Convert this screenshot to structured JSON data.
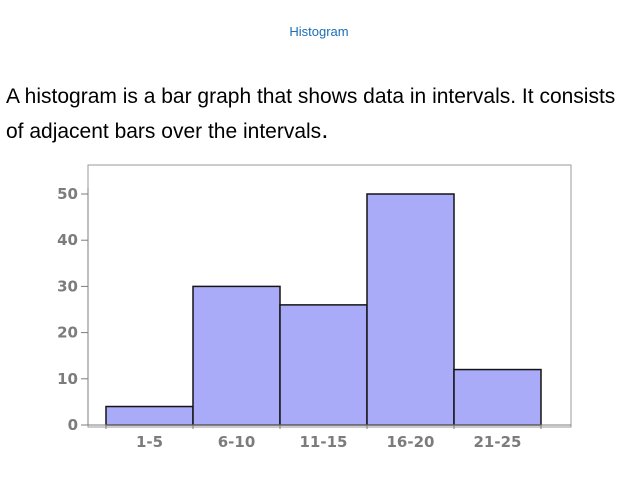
{
  "title": "Histogram",
  "body_text": "A histogram is a bar graph that shows data in intervals. It consists of adjacent bars over the intervals",
  "body_period": ".",
  "colors": {
    "title": "#1a6fb5",
    "bar_fill": "#a9aaf8",
    "bar_stroke": "#141414",
    "axis_text": "#7c7c7c",
    "frame": "#9a9a9a"
  },
  "chart_data": {
    "type": "bar",
    "categories": [
      "1-5",
      "6-10",
      "11-15",
      "16-20",
      "21-25"
    ],
    "values": [
      4,
      30,
      26,
      50,
      12
    ],
    "ylim": [
      0,
      50
    ],
    "yticks": [
      0,
      10,
      20,
      30,
      40,
      50
    ],
    "title": "",
    "xlabel": "",
    "ylabel": "",
    "grid": false,
    "adjacent_bars": true
  }
}
